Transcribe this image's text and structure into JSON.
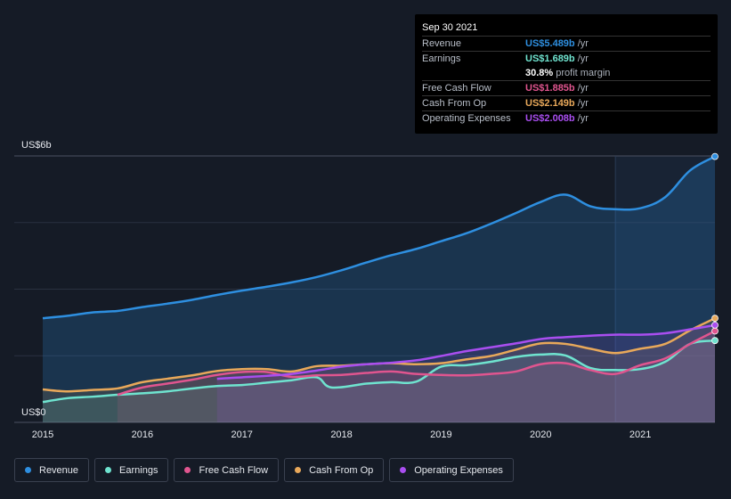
{
  "tooltip": {
    "date": "Sep 30 2021",
    "rows": [
      {
        "label": "Revenue",
        "value": "US$5.489b",
        "unit": "/yr",
        "color": "#2e8fe0"
      },
      {
        "label": "Earnings",
        "value": "US$1.689b",
        "unit": "/yr",
        "color": "#6fe3cf"
      },
      {
        "label": "",
        "value": "30.8%",
        "unit": "profit margin",
        "color": "#ffffff"
      },
      {
        "label": "Free Cash Flow",
        "value": "US$1.885b",
        "unit": "/yr",
        "color": "#e0558f"
      },
      {
        "label": "Cash From Op",
        "value": "US$2.149b",
        "unit": "/yr",
        "color": "#e8a85a"
      },
      {
        "label": "Operating Expenses",
        "value": "US$2.008b",
        "unit": "/yr",
        "color": "#a94ef0"
      }
    ]
  },
  "legend": [
    {
      "label": "Revenue",
      "color": "#2e8fe0"
    },
    {
      "label": "Earnings",
      "color": "#6fe3cf"
    },
    {
      "label": "Free Cash Flow",
      "color": "#e0558f"
    },
    {
      "label": "Cash From Op",
      "color": "#e8a85a"
    },
    {
      "label": "Operating Expenses",
      "color": "#a94ef0"
    }
  ],
  "chart_data": {
    "type": "area",
    "title": "",
    "xlabel": "",
    "ylabel": "",
    "ylim": [
      0,
      5.5
    ],
    "xlim": [
      2015.0,
      2021.75
    ],
    "y_tick_labels": [
      {
        "value": 5.5,
        "label": "US$6b"
      },
      {
        "value": 0,
        "label": "US$0"
      }
    ],
    "x_tick_labels": [
      "2015",
      "2016",
      "2017",
      "2018",
      "2019",
      "2020",
      "2021"
    ],
    "grid": true,
    "highlight_from": 2020.75,
    "series": [
      {
        "name": "Revenue",
        "color": "#2e8fe0",
        "x": [
          2015.0,
          2015.25,
          2015.5,
          2015.75,
          2016.0,
          2016.25,
          2016.5,
          2016.75,
          2017.0,
          2017.25,
          2017.5,
          2017.75,
          2018.0,
          2018.25,
          2018.5,
          2018.75,
          2019.0,
          2019.25,
          2019.5,
          2019.75,
          2020.0,
          2020.25,
          2020.5,
          2020.75,
          2021.0,
          2021.25,
          2021.5,
          2021.75
        ],
        "values": [
          2.15,
          2.2,
          2.27,
          2.3,
          2.38,
          2.45,
          2.53,
          2.63,
          2.72,
          2.8,
          2.89,
          3.0,
          3.14,
          3.3,
          3.45,
          3.58,
          3.74,
          3.9,
          4.1,
          4.32,
          4.55,
          4.7,
          4.46,
          4.4,
          4.42,
          4.65,
          5.2,
          5.489
        ]
      },
      {
        "name": "Earnings",
        "color": "#6fe3cf",
        "x": [
          2015.0,
          2015.25,
          2015.5,
          2015.75,
          2016.0,
          2016.25,
          2016.5,
          2016.75,
          2017.0,
          2017.25,
          2017.5,
          2017.75,
          2017.9,
          2018.25,
          2018.5,
          2018.75,
          2019.0,
          2019.25,
          2019.5,
          2019.75,
          2020.0,
          2020.25,
          2020.5,
          2020.75,
          2021.0,
          2021.25,
          2021.5,
          2021.75
        ],
        "values": [
          0.42,
          0.5,
          0.53,
          0.57,
          0.6,
          0.64,
          0.7,
          0.75,
          0.77,
          0.82,
          0.87,
          0.93,
          0.72,
          0.8,
          0.83,
          0.84,
          1.15,
          1.18,
          1.25,
          1.35,
          1.4,
          1.38,
          1.12,
          1.08,
          1.1,
          1.25,
          1.62,
          1.689
        ]
      },
      {
        "name": "Free Cash Flow",
        "color": "#e0558f",
        "x": [
          2015.75,
          2016.0,
          2016.25,
          2016.5,
          2016.75,
          2017.0,
          2017.25,
          2017.5,
          2017.75,
          2018.0,
          2018.25,
          2018.5,
          2018.75,
          2019.0,
          2019.25,
          2019.5,
          2019.75,
          2020.0,
          2020.25,
          2020.5,
          2020.75,
          2021.0,
          2021.25,
          2021.5,
          2021.75
        ],
        "values": [
          0.57,
          0.72,
          0.8,
          0.88,
          0.98,
          1.04,
          1.04,
          0.94,
          0.97,
          0.98,
          1.02,
          1.05,
          1.0,
          0.98,
          0.97,
          1.0,
          1.05,
          1.2,
          1.22,
          1.08,
          1.0,
          1.18,
          1.32,
          1.62,
          1.885
        ]
      },
      {
        "name": "Cash From Op",
        "color": "#e8a85a",
        "x": [
          2015.0,
          2015.25,
          2015.5,
          2015.75,
          2016.0,
          2016.25,
          2016.5,
          2016.75,
          2017.0,
          2017.25,
          2017.5,
          2017.75,
          2018.0,
          2018.25,
          2018.5,
          2018.75,
          2019.0,
          2019.25,
          2019.5,
          2019.75,
          2020.0,
          2020.25,
          2020.5,
          2020.75,
          2021.0,
          2021.25,
          2021.5,
          2021.75
        ],
        "values": [
          0.68,
          0.64,
          0.67,
          0.7,
          0.83,
          0.9,
          0.97,
          1.06,
          1.1,
          1.1,
          1.05,
          1.16,
          1.17,
          1.2,
          1.22,
          1.2,
          1.22,
          1.3,
          1.37,
          1.5,
          1.63,
          1.62,
          1.52,
          1.43,
          1.52,
          1.62,
          1.9,
          2.149
        ]
      },
      {
        "name": "Operating Expenses",
        "color": "#a94ef0",
        "x": [
          2016.75,
          2017.0,
          2017.25,
          2017.5,
          2017.75,
          2018.0,
          2018.25,
          2018.5,
          2018.75,
          2019.0,
          2019.25,
          2019.5,
          2019.75,
          2020.0,
          2020.25,
          2020.5,
          2020.75,
          2021.0,
          2021.25,
          2021.5,
          2021.75
        ],
        "values": [
          0.9,
          0.93,
          0.96,
          1.0,
          1.07,
          1.15,
          1.2,
          1.23,
          1.28,
          1.37,
          1.47,
          1.55,
          1.63,
          1.72,
          1.76,
          1.79,
          1.81,
          1.81,
          1.84,
          1.92,
          2.008
        ]
      }
    ]
  }
}
